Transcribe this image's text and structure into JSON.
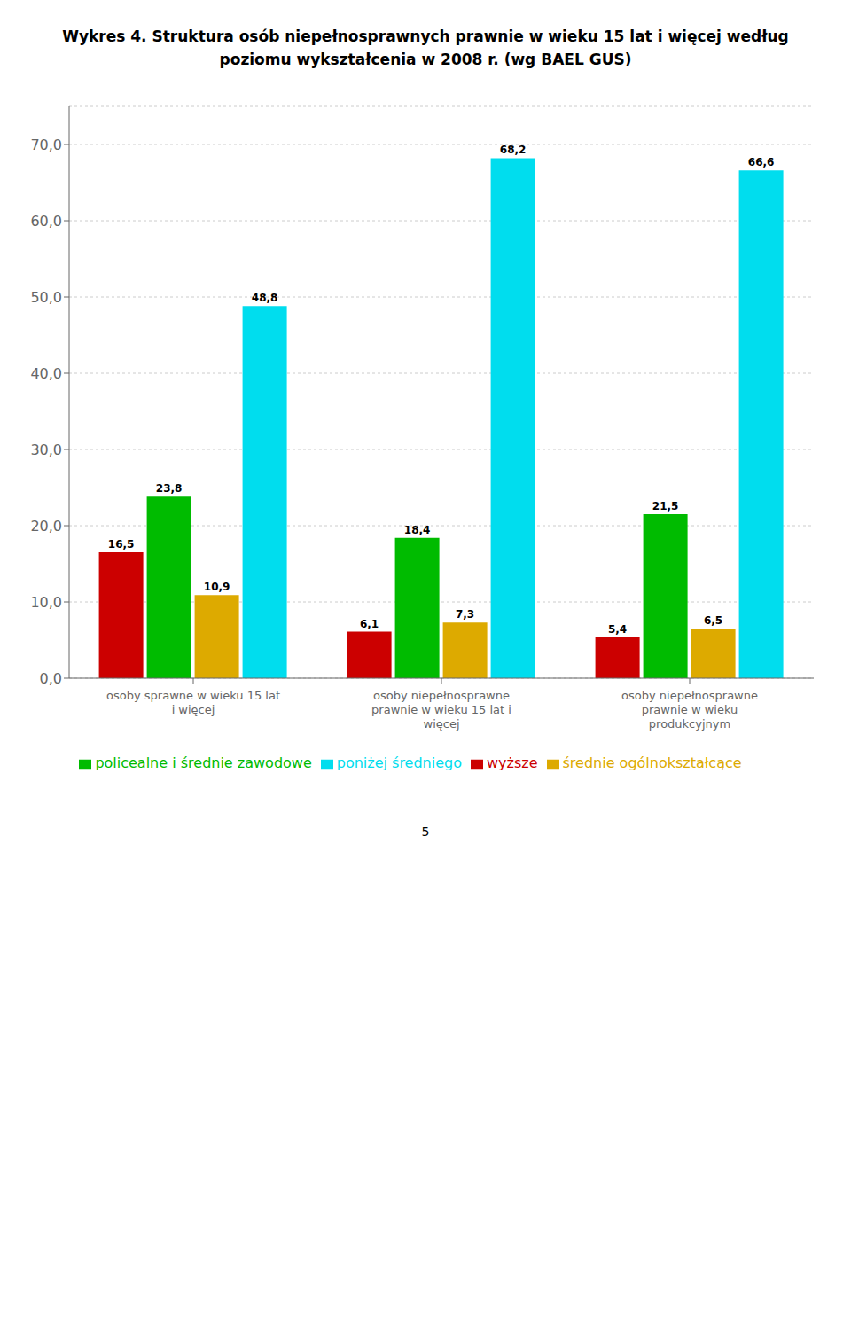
{
  "chart_data": {
    "type": "bar",
    "title": "Wykres 4. Struktura osób niepełnosprawnych prawnie w wieku 15 lat i więcej według\npoziomu wykształcenia w 2008 r. (wg BAEL GUS)",
    "categories": [
      "osoby sprawne w wieku 15 lat\ni więcej",
      "osoby niepełnosprawne\nprawnie w wieku 15 lat i\nwięcej",
      "osoby niepełnosprawne\nprawnie w wieku\nprodukcyjnym"
    ],
    "series": [
      {
        "name": "wyższe",
        "color": "#cc0000",
        "values": [
          16.5,
          6.1,
          5.4
        ],
        "value_labels": [
          "16,5",
          "6,1",
          "5,4"
        ]
      },
      {
        "name": "policealne i średnie zawodowe",
        "color": "#00bb00",
        "values": [
          23.8,
          18.4,
          21.5
        ],
        "value_labels": [
          "23,8",
          "18,4",
          "21,5"
        ]
      },
      {
        "name": "średnie ogólnokształcące",
        "color": "#ddaa00",
        "values": [
          10.9,
          7.3,
          6.5
        ],
        "value_labels": [
          "10,9",
          "7,3",
          "6,5"
        ]
      },
      {
        "name": "poniżej średniego",
        "color": "#00ddee",
        "values": [
          48.8,
          68.2,
          66.6
        ],
        "value_labels": [
          "48,8",
          "68,2",
          "66,6"
        ]
      }
    ],
    "ylim": [
      0,
      75
    ],
    "yticks": [
      {
        "value": 0,
        "label": "0,0"
      },
      {
        "value": 10,
        "label": "10,0"
      },
      {
        "value": 20,
        "label": "20,0"
      },
      {
        "value": 30,
        "label": "30,0"
      },
      {
        "value": 40,
        "label": "40,0"
      },
      {
        "value": 50,
        "label": "50,0"
      },
      {
        "value": 60,
        "label": "60,0"
      },
      {
        "value": 70,
        "label": "70,0"
      }
    ],
    "grid": true,
    "legend": "bottom",
    "data_labels": true,
    "annotations": [
      "5"
    ]
  }
}
